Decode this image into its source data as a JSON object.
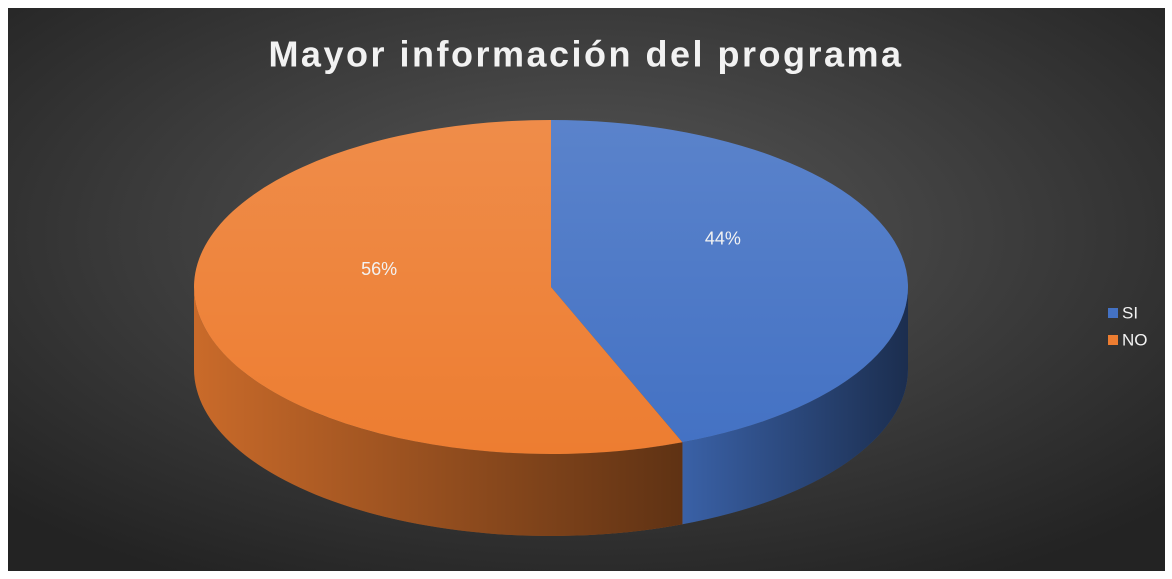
{
  "chart_data": {
    "type": "pie",
    "title": "Mayor información del programa",
    "categories": [
      "SI",
      "NO"
    ],
    "values": [
      44,
      56
    ],
    "value_labels": [
      "44%",
      "56%"
    ],
    "colors": [
      "#4472c4",
      "#ed7d31"
    ],
    "legend": "right"
  }
}
